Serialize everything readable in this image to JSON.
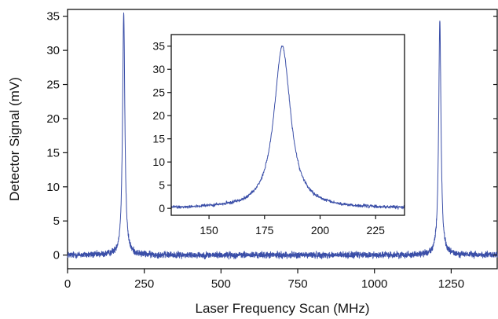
{
  "chart_data": [
    {
      "type": "line",
      "xlabel": "Laser Frequency Scan (MHz)",
      "ylabel": "Detector Signal (mV)",
      "xlim": [
        0,
        1400
      ],
      "ylim": [
        -2,
        36
      ],
      "xticks": [
        0,
        250,
        500,
        750,
        1000,
        1250
      ],
      "yticks": [
        0,
        5,
        10,
        15,
        20,
        25,
        30,
        35
      ],
      "grid": false,
      "line_color": "#3b4fa8",
      "noise_amplitude_mV": 0.45,
      "peaks": [
        {
          "center_MHz": 183,
          "height_mV": 35.5,
          "hwhm_MHz": 4.5
        },
        {
          "center_MHz": 1213,
          "height_mV": 34.3,
          "hwhm_MHz": 4.5
        }
      ]
    },
    {
      "type": "line",
      "role": "inset",
      "xlim": [
        133,
        238
      ],
      "ylim": [
        -1.5,
        37.5
      ],
      "xticks": [
        150,
        175,
        200,
        225
      ],
      "yticks": [
        0,
        5,
        10,
        15,
        20,
        25,
        30,
        35
      ],
      "grid": false,
      "line_color": "#3b4fa8",
      "noise_amplitude_mV": 0.35,
      "peak": {
        "center_MHz": 183,
        "height_mV": 35,
        "hwhm_MHz": 4.5
      }
    }
  ]
}
